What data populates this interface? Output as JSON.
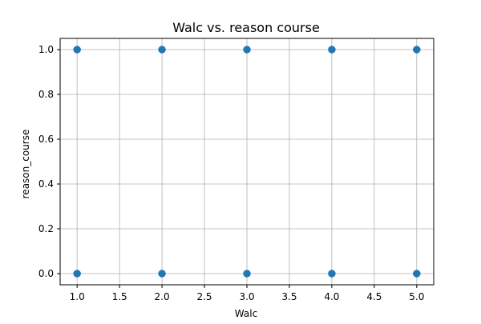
{
  "chart_data": {
    "type": "scatter",
    "title": "Walc vs. reason course",
    "xlabel": "Walc",
    "ylabel": "reason_course",
    "xlim": [
      0.8,
      5.2
    ],
    "ylim": [
      -0.05,
      1.05
    ],
    "xticks": [
      1.0,
      1.5,
      2.0,
      2.5,
      3.0,
      3.5,
      4.0,
      4.5,
      5.0
    ],
    "yticks": [
      0.0,
      0.2,
      0.4,
      0.6,
      0.8,
      1.0
    ],
    "xtick_labels": [
      "1.0",
      "1.5",
      "2.0",
      "2.5",
      "3.0",
      "3.5",
      "4.0",
      "4.5",
      "5.0"
    ],
    "ytick_labels": [
      "0.0",
      "0.2",
      "0.4",
      "0.6",
      "0.8",
      "1.0"
    ],
    "grid": true,
    "color": "#1f77b4",
    "points": [
      {
        "x": 1,
        "y": 1
      },
      {
        "x": 2,
        "y": 1
      },
      {
        "x": 3,
        "y": 1
      },
      {
        "x": 4,
        "y": 1
      },
      {
        "x": 5,
        "y": 1
      },
      {
        "x": 1,
        "y": 0
      },
      {
        "x": 2,
        "y": 0
      },
      {
        "x": 3,
        "y": 0
      },
      {
        "x": 4,
        "y": 0
      },
      {
        "x": 5,
        "y": 0
      }
    ]
  }
}
